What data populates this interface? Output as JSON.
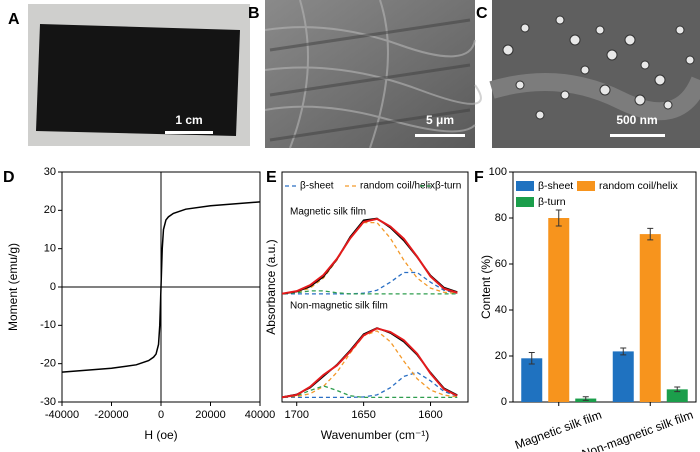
{
  "panel_labels": [
    "A",
    "B",
    "C",
    "D",
    "E",
    "F"
  ],
  "images": [
    {
      "scale_bar": "1 cm"
    },
    {
      "scale_bar": "5 μm"
    },
    {
      "scale_bar": "500 nm"
    }
  ],
  "chart_data": [
    {
      "type": "line",
      "xlabel": "H (oe)",
      "ylabel": "Moment (emu/g)",
      "x": [
        -40000,
        -20000,
        -10000,
        -5000,
        -3000,
        -2000,
        -1000,
        -500,
        0,
        500,
        1000,
        2000,
        3000,
        5000,
        10000,
        20000,
        40000
      ],
      "series": [
        {
          "color": "#000000",
          "values": [
            -22.2,
            -21.2,
            -20.3,
            -19.2,
            -18.3,
            -17.5,
            -15,
            -10,
            0,
            10,
            15,
            17.5,
            18.3,
            19.2,
            20.3,
            21.2,
            22.2
          ]
        }
      ],
      "xlim": [
        -40000,
        40000
      ],
      "ylim": [
        -30,
        30
      ],
      "xticks": [
        -40000,
        -20000,
        0,
        20000,
        40000
      ],
      "yticks": [
        -30,
        -20,
        -10,
        0,
        10,
        20,
        30
      ],
      "zero_lines": true
    },
    {
      "type": "spectra",
      "xlabel": "Wavenumber (cm⁻¹)",
      "ylabel": "Absorbance (a.u.)",
      "x": [
        1720,
        1710,
        1700,
        1690,
        1680,
        1670,
        1660,
        1650,
        1640,
        1630,
        1620,
        1610,
        1600,
        1590,
        1580
      ],
      "xlim": [
        1711,
        1572
      ],
      "ylim": [
        0,
        10
      ],
      "xticks": [
        1700,
        1650,
        1600
      ],
      "legend": [
        {
          "name": "β-sheet",
          "color": "#2a6fc4"
        },
        {
          "name": "random coil/helix",
          "color": "#f39a2b"
        },
        {
          "name": "β-turn",
          "color": "#2f9e4f"
        }
      ],
      "panels": [
        {
          "label": "Magnetic silk film",
          "measured": {
            "color": "#000000",
            "values": [
              4.68,
              4.71,
              4.8,
              5.02,
              5.45,
              6.2,
              7.18,
              7.9,
              7.98,
              7.58,
              7.02,
              6.3,
              5.5,
              4.98,
              4.78
            ]
          },
          "fit": {
            "color": "#e31a1c",
            "values": [
              4.7,
              4.72,
              4.82,
              5.08,
              5.52,
              6.22,
              7.12,
              7.83,
              7.96,
              7.63,
              7.1,
              6.32,
              5.46,
              4.93,
              4.75
            ]
          },
          "components": [
            [
              4.7,
              4.7,
              4.7,
              4.7,
              4.7,
              4.7,
              4.7,
              4.73,
              4.86,
              5.21,
              5.63,
              5.63,
              5.21,
              4.86,
              4.73
            ],
            [
              4.7,
              4.72,
              4.77,
              4.95,
              5.39,
              6.17,
              7.12,
              7.8,
              7.8,
              7.12,
              6.17,
              5.39,
              4.95,
              4.77,
              4.72
            ],
            [
              4.7,
              4.7,
              4.75,
              4.83,
              4.83,
              4.75,
              4.7,
              4.7,
              4.7,
              4.7,
              4.7,
              4.7,
              4.7,
              4.7,
              4.7
            ]
          ]
        },
        {
          "label": "Non-magnetic silk film",
          "measured": {
            "color": "#000000",
            "values": [
              0.19,
              0.22,
              0.33,
              0.62,
              1.12,
              1.62,
              2.25,
              2.95,
              3.22,
              3.0,
              2.62,
              2.05,
              1.28,
              0.6,
              0.3
            ]
          },
          "fit": {
            "color": "#e31a1c",
            "values": [
              0.2,
              0.21,
              0.31,
              0.66,
              1.18,
              1.59,
              2.2,
              2.9,
              3.2,
              3.04,
              2.69,
              2.1,
              1.24,
              0.56,
              0.27
            ]
          },
          "components": [
            [
              0.2,
              0.2,
              0.2,
              0.2,
              0.2,
              0.2,
              0.2,
              0.22,
              0.31,
              0.62,
              1.11,
              1.29,
              0.92,
              0.46,
              0.25
            ],
            [
              0.2,
              0.21,
              0.24,
              0.36,
              0.68,
              1.29,
              2.13,
              2.88,
              3.09,
              2.62,
              1.78,
              1.01,
              0.52,
              0.3,
              0.22
            ],
            [
              0.2,
              0.2,
              0.27,
              0.5,
              0.7,
              0.5,
              0.27,
              0.2,
              0.2,
              0.2,
              0.2,
              0.2,
              0.2,
              0.2,
              0.2
            ]
          ]
        }
      ]
    },
    {
      "type": "bar",
      "ylabel": "Content (%)",
      "categories": [
        "Magnetic silk film",
        "Non-magnetic silk film"
      ],
      "series": [
        {
          "name": "β-sheet",
          "color": "#1f72c0",
          "values": [
            19,
            22
          ],
          "errors": [
            2.5,
            1.5
          ]
        },
        {
          "name": "random coil/helix",
          "color": "#f7941d",
          "values": [
            80,
            73
          ],
          "errors": [
            3.5,
            2.5
          ]
        },
        {
          "name": "β-turn",
          "color": "#1b9e4b",
          "values": [
            1.5,
            5.5
          ],
          "errors": [
            0.8,
            1
          ]
        }
      ],
      "ylim": [
        0,
        100
      ],
      "yticks": [
        0,
        20,
        40,
        60,
        80,
        100
      ],
      "legend": "upper left"
    }
  ]
}
